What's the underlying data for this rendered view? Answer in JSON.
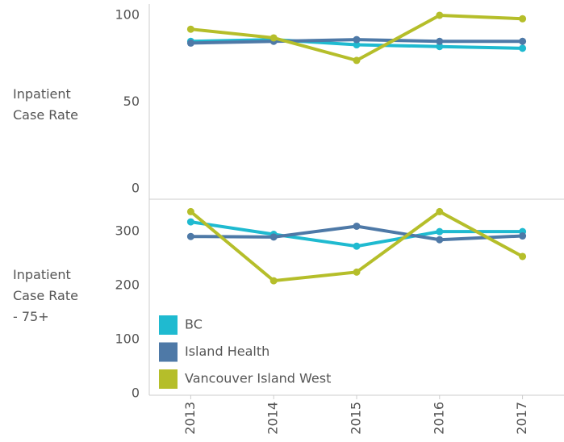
{
  "chart_data": [
    {
      "type": "line",
      "y_label": "Inpatient Case Rate",
      "categories": [
        "2013",
        "2014",
        "2015",
        "2016",
        "2017"
      ],
      "ylim": [
        -6,
        106.5
      ],
      "yticks": [
        0,
        50,
        100
      ],
      "series": [
        {
          "name": "BC",
          "color": "#1fbad0",
          "values": [
            85,
            86,
            83,
            82,
            81
          ]
        },
        {
          "name": "Island Health",
          "color": "#4e79a7",
          "values": [
            84,
            85,
            86,
            85,
            85
          ]
        },
        {
          "name": "Vancouver Island West",
          "color": "#b5be2a",
          "values": [
            92,
            87,
            74,
            100,
            98
          ]
        }
      ]
    },
    {
      "type": "line",
      "y_label": "Inpatient Case Rate - 75+",
      "categories": [
        "2013",
        "2014",
        "2015",
        "2016",
        "2017"
      ],
      "ylim": [
        -3,
        360
      ],
      "yticks": [
        0,
        100,
        200,
        300
      ],
      "series": [
        {
          "name": "BC",
          "color": "#1fbad0",
          "values": [
            318,
            295,
            273,
            300,
            300
          ]
        },
        {
          "name": "Island Health",
          "color": "#4e79a7",
          "values": [
            291,
            290,
            310,
            285,
            292
          ]
        },
        {
          "name": "Vancouver Island West",
          "color": "#b5be2a",
          "values": [
            337,
            209,
            225,
            337,
            254
          ]
        }
      ]
    }
  ]
}
